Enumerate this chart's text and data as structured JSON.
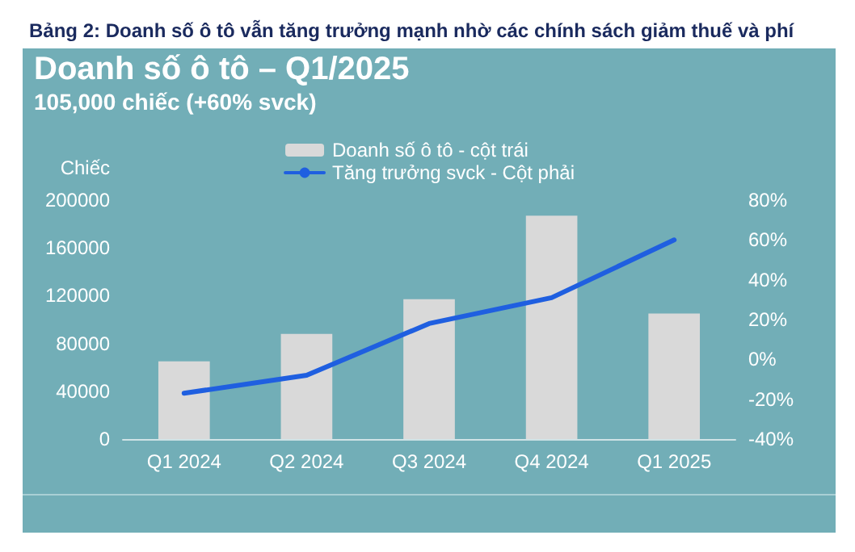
{
  "chart_data": {
    "type": "bar",
    "title": "Bảng 2: Doanh số ô tô vẫn tăng trưởng mạnh nhờ các chính sách giảm thuế và phí",
    "subtitle": "Doanh số ô tô – Q1/2025",
    "annotations": [
      "105,000 chiếc (+60% svck)"
    ],
    "ylabel": "Chiếc",
    "categories": [
      "Q1 2024",
      "Q2 2024",
      "Q3 2024",
      "Q4 2024",
      "Q1 2025"
    ],
    "series": [
      {
        "name": "Doanh số ô tô - cột trái",
        "color": "#d9d9d9",
        "values": [
          65000,
          88000,
          117000,
          187000,
          105000
        ]
      },
      {
        "name": "Tăng trưởng svck - Cột phải",
        "type": "line",
        "axis": "y2",
        "color": "#1f5fe0",
        "values": [
          -17,
          -8,
          18,
          31,
          60
        ]
      }
    ],
    "ylim": [
      0,
      200000
    ],
    "yticks": [
      0,
      40000,
      80000,
      120000,
      160000,
      200000
    ],
    "y2lim": [
      -40,
      80
    ],
    "y2ticks": [
      {
        "value": -40,
        "label": "-40%"
      },
      {
        "value": -20,
        "label": "-20%"
      },
      {
        "value": 0,
        "label": "0%"
      },
      {
        "value": 20,
        "label": "20%"
      },
      {
        "value": 40,
        "label": "40%"
      },
      {
        "value": 60,
        "label": "60%"
      },
      {
        "value": 80,
        "label": "80%"
      }
    ],
    "grid": false,
    "legend": "top",
    "marker": "none",
    "line_style": "solid"
  }
}
